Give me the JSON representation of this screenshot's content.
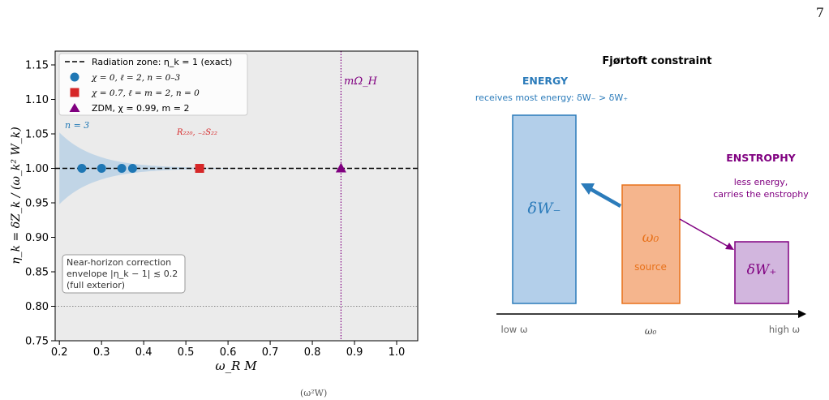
{
  "page": {
    "number": "7",
    "caption_fragment": "(ω²W)"
  },
  "left_plot": {
    "title": "",
    "xlabel": "ω_R M",
    "ylabel": "η_k = δZ_k / (ω_k² W_k)",
    "xlim": [
      0.19,
      1.05
    ],
    "ylim": [
      0.75,
      1.17
    ],
    "xticks": [
      "0.2",
      "0.3",
      "0.4",
      "0.5",
      "0.6",
      "0.7",
      "0.8",
      "0.9",
      "1.0"
    ],
    "yticks": [
      "0.75",
      "0.80",
      "0.85",
      "0.90",
      "0.95",
      "1.00",
      "1.05",
      "1.10",
      "1.15"
    ],
    "legend": {
      "placement": "top-left",
      "entries": [
        "Radiation zone: η_k = 1 (exact)",
        "χ = 0, ℓ = 2, n = 0–3",
        "χ = 0.7, ℓ = m = 2, n = 0",
        "ZDM, χ = 0.99, m = 2"
      ]
    },
    "annotations": {
      "n3": "n = 3",
      "r220": "R₂₂₀, ₋₂S₂₂",
      "mOmegaH": "mΩ_H",
      "envelope_box": [
        "Near-horizon correction",
        "envelope  |η_k − 1| ≲ 0.2",
        "(full exterior)"
      ]
    },
    "colors": {
      "blue": "#1f77b4",
      "red": "#d62728",
      "purple": "#800080",
      "envelope": "#bcd3e6",
      "bg": "#ebebeb"
    }
  },
  "chart_data": {
    "type": "scatter",
    "title": "",
    "xlabel": "ω_R M",
    "ylabel": "η_k = δZ_k / (ω_k² W_k)",
    "xlim": [
      0.19,
      1.05
    ],
    "ylim": [
      0.75,
      1.17
    ],
    "grid": false,
    "series": [
      {
        "name": "Radiation zone: η_k = 1 (exact)",
        "kind": "hline",
        "y": 1.0,
        "style": "dashed",
        "color": "#000000"
      },
      {
        "name": "χ = 0, ℓ = 2, n = 0–3",
        "marker": "circle",
        "color": "#1f77b4",
        "x": [
          0.2533,
          0.3001,
          0.3479,
          0.3736
        ],
        "y": [
          1.0,
          1.0,
          1.0,
          1.0
        ]
      },
      {
        "name": "χ = 0.7, ℓ = m = 2, n = 0",
        "marker": "square",
        "color": "#d62728",
        "x": [
          0.5326
        ],
        "y": [
          1.0
        ]
      },
      {
        "name": "ZDM, χ = 0.99, m = 2",
        "marker": "triangle",
        "color": "#800080",
        "x": [
          0.868
        ],
        "y": [
          1.0
        ]
      }
    ],
    "vline": {
      "x": 0.868,
      "label": "mΩ_H",
      "color": "#800080",
      "style": "dotted"
    },
    "hline_dotted": {
      "y": 0.8,
      "color": "#888888"
    },
    "envelope": {
      "x_start": 0.2,
      "half_width_at_start": 0.052,
      "decay": "tapers to 0 near x = 0.6"
    }
  },
  "right_diagram": {
    "title": "Fjørtoft constraint",
    "energy_heading": "ENERGY",
    "energy_sub": "receives most energy:  δW₋ > δW₊",
    "enstrophy_heading": "ENSTROPHY",
    "enstrophy_sub": [
      "less energy,",
      "carries the enstrophy"
    ],
    "box_minus": "δW₋",
    "box_source_symbol": "ω₀",
    "box_source_label": "source",
    "box_plus": "δW₊",
    "axis_low": "low ω",
    "axis_mid": "ω₀",
    "axis_high": "high ω",
    "colors": {
      "blue": "#2b7bba",
      "orange": "#e8711a",
      "purple": "#800080"
    }
  }
}
